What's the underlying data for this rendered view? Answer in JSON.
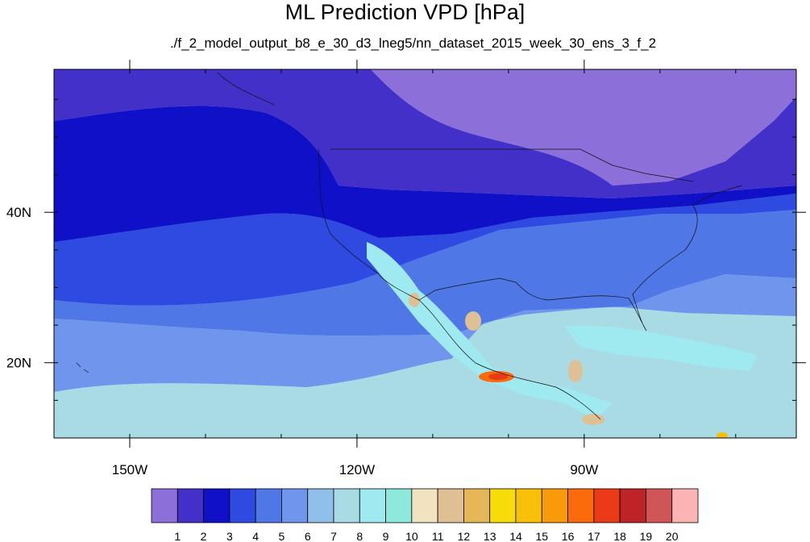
{
  "chart_data": {
    "type": "heatmap",
    "title": "ML Prediction VPD [hPa]",
    "subtitle": "./f_2_model_output_b8_e_30_d3_lneg5/nn_dataset_2015_week_30_ens_3_f_2",
    "lon_range": [
      -160,
      -62
    ],
    "lat_range": [
      10,
      59
    ],
    "x_ticks": [
      {
        "value": -150,
        "label": "150W"
      },
      {
        "value": -120,
        "label": "120W"
      },
      {
        "value": -90,
        "label": "90W"
      }
    ],
    "y_ticks": [
      {
        "value": 40,
        "label": "40N"
      },
      {
        "value": 20,
        "label": "20N"
      }
    ],
    "colorbar": {
      "colors": [
        "#8c6fd9",
        "#4330c8",
        "#1010c8",
        "#2e4ae0",
        "#4f78e6",
        "#6f95ec",
        "#90c0ea",
        "#a9dbe4",
        "#9eeaf0",
        "#8fe8dc",
        "#f1e3c0",
        "#dfc095",
        "#e6b757",
        "#f8dc0a",
        "#f9c00a",
        "#f99a0b",
        "#fb6a0b",
        "#ea3a18",
        "#bc2427",
        "#d05557",
        "#fbb3b3"
      ],
      "labels": [
        "1",
        "2",
        "3",
        "4",
        "5",
        "6",
        "7",
        "8",
        "9",
        "10",
        "11",
        "12",
        "13",
        "14",
        "15",
        "16",
        "17",
        "18",
        "19",
        "20"
      ]
    },
    "legend_position": "bottom"
  }
}
